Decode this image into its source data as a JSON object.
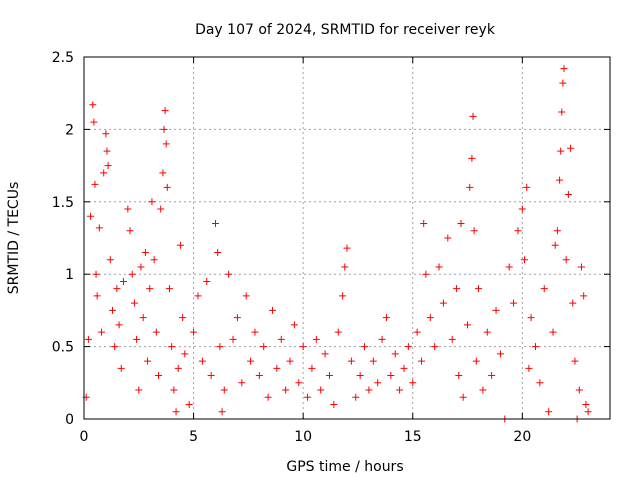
{
  "chart_data": {
    "type": "scatter",
    "title": "Day 107 of 2024, SRMTID for receiver reyk",
    "xlabel": "GPS time / hours",
    "ylabel": "SRMTID / TECUs",
    "xlim": [
      0,
      24
    ],
    "ylim": [
      0,
      2.5
    ],
    "x_ticks": [
      "0",
      "5",
      "10",
      "15",
      "20"
    ],
    "x_tick_values": [
      0,
      5,
      10,
      15,
      20
    ],
    "y_ticks": [
      "0",
      "0.5",
      "1",
      "1.5",
      "2",
      "2.5"
    ],
    "y_tick_values": [
      0,
      0.5,
      1,
      1.5,
      2,
      2.5
    ],
    "grid": true,
    "marker": "plus",
    "series_color": "#ff0000",
    "series": [
      {
        "name": "SRMTID",
        "points": [
          [
            0.1,
            0.15
          ],
          [
            0.2,
            0.55
          ],
          [
            0.3,
            1.4
          ],
          [
            0.4,
            2.17
          ],
          [
            0.45,
            2.05
          ],
          [
            0.5,
            1.62
          ],
          [
            0.55,
            1.0
          ],
          [
            0.6,
            0.85
          ],
          [
            0.7,
            1.32
          ],
          [
            0.8,
            0.6
          ],
          [
            0.9,
            1.7
          ],
          [
            1.0,
            1.97
          ],
          [
            1.05,
            1.85
          ],
          [
            1.1,
            1.75
          ],
          [
            1.2,
            1.1
          ],
          [
            1.3,
            0.75
          ],
          [
            1.4,
            0.5
          ],
          [
            1.5,
            0.9
          ],
          [
            1.6,
            0.65
          ],
          [
            1.7,
            0.35
          ],
          [
            1.8,
            0.95
          ],
          [
            2.0,
            1.45
          ],
          [
            2.1,
            1.3
          ],
          [
            2.2,
            1.0
          ],
          [
            2.3,
            0.8
          ],
          [
            2.4,
            0.55
          ],
          [
            2.5,
            0.2
          ],
          [
            2.6,
            1.05
          ],
          [
            2.7,
            0.7
          ],
          [
            2.8,
            1.15
          ],
          [
            2.9,
            0.4
          ],
          [
            3.0,
            0.9
          ],
          [
            3.1,
            1.5
          ],
          [
            3.2,
            1.1
          ],
          [
            3.3,
            0.6
          ],
          [
            3.4,
            0.3
          ],
          [
            3.5,
            1.45
          ],
          [
            3.6,
            1.7
          ],
          [
            3.65,
            2.0
          ],
          [
            3.7,
            2.13
          ],
          [
            3.75,
            1.9
          ],
          [
            3.8,
            1.6
          ],
          [
            3.9,
            0.9
          ],
          [
            4.0,
            0.5
          ],
          [
            4.1,
            0.2
          ],
          [
            4.2,
            0.05
          ],
          [
            4.3,
            0.35
          ],
          [
            4.4,
            1.2
          ],
          [
            4.5,
            0.7
          ],
          [
            4.6,
            0.45
          ],
          [
            4.8,
            0.1
          ],
          [
            5.0,
            0.6
          ],
          [
            5.2,
            0.85
          ],
          [
            5.4,
            0.4
          ],
          [
            5.6,
            0.95
          ],
          [
            5.8,
            0.3
          ],
          [
            6.0,
            1.35
          ],
          [
            6.1,
            1.15
          ],
          [
            6.2,
            0.5
          ],
          [
            6.3,
            0.05
          ],
          [
            6.4,
            0.2
          ],
          [
            6.6,
            1.0
          ],
          [
            6.8,
            0.55
          ],
          [
            7.0,
            0.7
          ],
          [
            7.2,
            0.25
          ],
          [
            7.4,
            0.85
          ],
          [
            7.6,
            0.4
          ],
          [
            7.8,
            0.6
          ],
          [
            8.0,
            0.3
          ],
          [
            8.2,
            0.5
          ],
          [
            8.4,
            0.15
          ],
          [
            8.6,
            0.75
          ],
          [
            8.8,
            0.35
          ],
          [
            9.0,
            0.55
          ],
          [
            9.2,
            0.2
          ],
          [
            9.4,
            0.4
          ],
          [
            9.6,
            0.65
          ],
          [
            9.8,
            0.25
          ],
          [
            10.0,
            0.5
          ],
          [
            10.2,
            0.15
          ],
          [
            10.4,
            0.35
          ],
          [
            10.6,
            0.55
          ],
          [
            10.8,
            0.2
          ],
          [
            11.0,
            0.45
          ],
          [
            11.2,
            0.3
          ],
          [
            11.4,
            0.1
          ],
          [
            11.6,
            0.6
          ],
          [
            11.8,
            0.85
          ],
          [
            11.9,
            1.05
          ],
          [
            12.0,
            1.18
          ],
          [
            12.2,
            0.4
          ],
          [
            12.4,
            0.15
          ],
          [
            12.6,
            0.3
          ],
          [
            12.8,
            0.5
          ],
          [
            13.0,
            0.2
          ],
          [
            13.2,
            0.4
          ],
          [
            13.4,
            0.25
          ],
          [
            13.6,
            0.55
          ],
          [
            13.8,
            0.7
          ],
          [
            14.0,
            0.3
          ],
          [
            14.2,
            0.45
          ],
          [
            14.4,
            0.2
          ],
          [
            14.6,
            0.35
          ],
          [
            14.8,
            0.5
          ],
          [
            15.0,
            0.25
          ],
          [
            15.2,
            0.6
          ],
          [
            15.4,
            0.4
          ],
          [
            15.5,
            1.35
          ],
          [
            15.6,
            1.0
          ],
          [
            15.8,
            0.7
          ],
          [
            16.0,
            0.5
          ],
          [
            16.2,
            1.05
          ],
          [
            16.4,
            0.8
          ],
          [
            16.6,
            1.25
          ],
          [
            16.8,
            0.55
          ],
          [
            17.0,
            0.9
          ],
          [
            17.1,
            0.3
          ],
          [
            17.2,
            1.35
          ],
          [
            17.3,
            0.15
          ],
          [
            17.5,
            0.65
          ],
          [
            17.6,
            1.6
          ],
          [
            17.7,
            1.8
          ],
          [
            17.75,
            2.09
          ],
          [
            17.8,
            1.3
          ],
          [
            17.9,
            0.4
          ],
          [
            18.0,
            0.9
          ],
          [
            18.2,
            0.2
          ],
          [
            18.4,
            0.6
          ],
          [
            18.6,
            0.3
          ],
          [
            18.8,
            0.75
          ],
          [
            19.0,
            0.45
          ],
          [
            19.2,
            0.0
          ],
          [
            19.4,
            1.05
          ],
          [
            19.6,
            0.8
          ],
          [
            19.8,
            1.3
          ],
          [
            20.0,
            1.45
          ],
          [
            20.1,
            1.1
          ],
          [
            20.2,
            1.6
          ],
          [
            20.3,
            0.35
          ],
          [
            20.4,
            0.7
          ],
          [
            20.6,
            0.5
          ],
          [
            20.8,
            0.25
          ],
          [
            21.0,
            0.9
          ],
          [
            21.2,
            0.05
          ],
          [
            21.4,
            0.6
          ],
          [
            21.5,
            1.2
          ],
          [
            21.6,
            1.3
          ],
          [
            21.7,
            1.65
          ],
          [
            21.75,
            1.85
          ],
          [
            21.8,
            2.12
          ],
          [
            21.85,
            2.32
          ],
          [
            21.9,
            2.42
          ],
          [
            22.0,
            1.1
          ],
          [
            22.1,
            1.55
          ],
          [
            22.2,
            1.87
          ],
          [
            22.3,
            0.8
          ],
          [
            22.4,
            0.4
          ],
          [
            22.5,
            0.0
          ],
          [
            22.6,
            0.2
          ],
          [
            22.7,
            1.05
          ],
          [
            22.8,
            0.85
          ],
          [
            22.9,
            0.1
          ],
          [
            23.0,
            0.05
          ]
        ]
      }
    ]
  }
}
